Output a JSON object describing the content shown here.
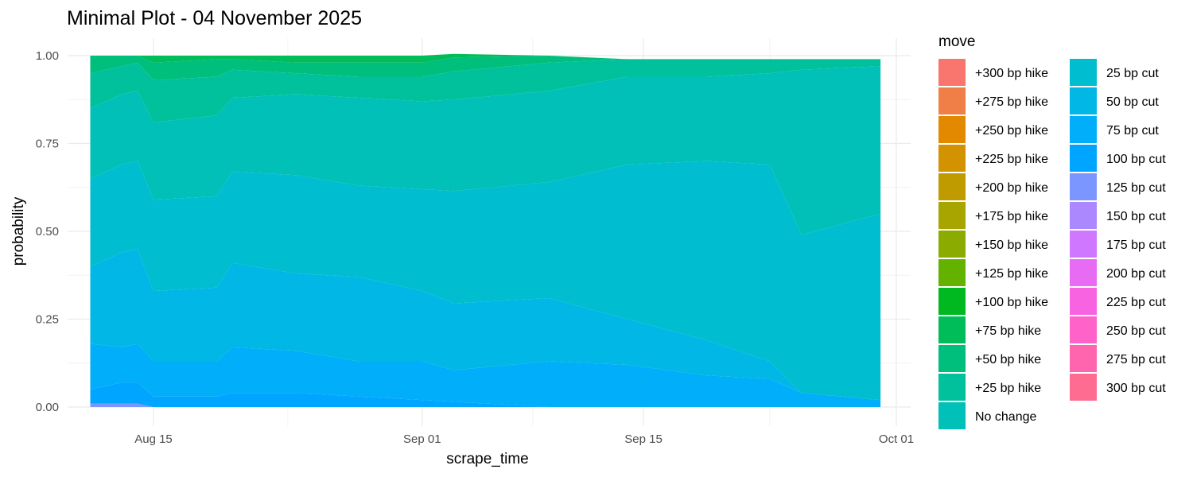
{
  "chart_data": {
    "type": "area",
    "stacked": true,
    "title": "Minimal Plot - 04 November 2025",
    "xlabel": "scrape_time",
    "ylabel": "probability",
    "ylim": [
      0,
      1
    ],
    "xlim": [
      "2025-08-10",
      "2025-10-01"
    ],
    "x_ticks": [
      {
        "date": "2025-08-15",
        "label": "Aug 15"
      },
      {
        "date": "2025-09-01",
        "label": "Sep 01"
      },
      {
        "date": "2025-09-15",
        "label": "Sep 15"
      },
      {
        "date": "2025-10-01",
        "label": "Oct 01"
      }
    ],
    "y_ticks": [
      {
        "value": 0,
        "label": "0.00"
      },
      {
        "value": 0.25,
        "label": "0.25"
      },
      {
        "value": 0.5,
        "label": "0.50"
      },
      {
        "value": 0.75,
        "label": "0.75"
      },
      {
        "value": 1,
        "label": "1.00"
      }
    ],
    "grid": true,
    "legend_title": "move",
    "legend_position": "right",
    "legend": [
      {
        "label": "+300 bp hike",
        "color": "#F8766D"
      },
      {
        "label": "+275 bp hike",
        "color": "#EF7F46"
      },
      {
        "label": "+250 bp hike",
        "color": "#E38900"
      },
      {
        "label": "+225 bp hike",
        "color": "#D39200"
      },
      {
        "label": "+200 bp hike",
        "color": "#C09B00"
      },
      {
        "label": "+175 bp hike",
        "color": "#A8A400"
      },
      {
        "label": "+150 bp hike",
        "color": "#8CAB00"
      },
      {
        "label": "+125 bp hike",
        "color": "#64B200"
      },
      {
        "label": "+100 bp hike",
        "color": "#00B81F"
      },
      {
        "label": "+75 bp hike",
        "color": "#00BC59"
      },
      {
        "label": "+50 bp hike",
        "color": "#00BF7D"
      },
      {
        "label": "+25 bp hike",
        "color": "#00C19C"
      },
      {
        "label": "No change",
        "color": "#00C0B8"
      },
      {
        "label": "25 bp cut",
        "color": "#00BDD0"
      },
      {
        "label": "50 bp cut",
        "color": "#00B7E6"
      },
      {
        "label": "75 bp cut",
        "color": "#00AEF9"
      },
      {
        "label": "100 bp cut",
        "color": "#00A5FF"
      },
      {
        "label": "125 bp cut",
        "color": "#7B97FF"
      },
      {
        "label": "150 bp cut",
        "color": "#AC88FF"
      },
      {
        "label": "175 bp cut",
        "color": "#CF78FF"
      },
      {
        "label": "200 bp cut",
        "color": "#E76BF3"
      },
      {
        "label": "225 bp cut",
        "color": "#F763E0"
      },
      {
        "label": "250 bp cut",
        "color": "#FF62C8"
      },
      {
        "label": "275 bp cut",
        "color": "#FF65AE"
      },
      {
        "label": "300 bp cut",
        "color": "#FF6C91"
      }
    ],
    "x": [
      "2025-08-11",
      "2025-08-13",
      "2025-08-14",
      "2025-08-15",
      "2025-08-19",
      "2025-08-20",
      "2025-08-24",
      "2025-08-28",
      "2025-09-01",
      "2025-09-03",
      "2025-09-09",
      "2025-09-14",
      "2025-09-19",
      "2025-09-23",
      "2025-09-25",
      "2025-09-30"
    ],
    "series": [
      {
        "name": "125 bp cut",
        "color": "#7B97FF",
        "values": [
          0.01,
          0.01,
          0.01,
          0.0,
          0.0,
          0.0,
          0.0,
          0.0,
          0.0,
          0.0,
          0.0,
          0.0,
          0.0,
          0.0,
          0.0,
          0.0
        ]
      },
      {
        "name": "100 bp cut",
        "color": "#00A5FF",
        "values": [
          0.04,
          0.06,
          0.06,
          0.03,
          0.03,
          0.04,
          0.04,
          0.03,
          0.02,
          0.015,
          0.0,
          0.0,
          0.0,
          0.0,
          0.0,
          0.0
        ]
      },
      {
        "name": "75 bp cut",
        "color": "#00AEF9",
        "values": [
          0.13,
          0.1,
          0.11,
          0.1,
          0.1,
          0.13,
          0.12,
          0.1,
          0.11,
          0.09,
          0.13,
          0.12,
          0.09,
          0.08,
          0.04,
          0.02
        ]
      },
      {
        "name": "50 bp cut",
        "color": "#00B7E6",
        "values": [
          0.22,
          0.27,
          0.27,
          0.2,
          0.21,
          0.24,
          0.22,
          0.24,
          0.2,
          0.19,
          0.18,
          0.13,
          0.1,
          0.05,
          0.0,
          0.0
        ]
      },
      {
        "name": "25 bp cut",
        "color": "#00BDD0",
        "values": [
          0.25,
          0.25,
          0.25,
          0.26,
          0.26,
          0.26,
          0.28,
          0.26,
          0.29,
          0.32,
          0.33,
          0.44,
          0.51,
          0.56,
          0.45,
          0.53
        ]
      },
      {
        "name": "No change",
        "color": "#00C0B8",
        "values": [
          0.2,
          0.2,
          0.2,
          0.22,
          0.23,
          0.21,
          0.23,
          0.25,
          0.25,
          0.26,
          0.26,
          0.25,
          0.24,
          0.26,
          0.47,
          0.42
        ]
      },
      {
        "name": "+25 bp hike",
        "color": "#00C19C",
        "values": [
          0.1,
          0.08,
          0.08,
          0.12,
          0.11,
          0.08,
          0.06,
          0.06,
          0.07,
          0.08,
          0.08,
          0.05,
          0.05,
          0.04,
          0.03,
          0.02
        ]
      },
      {
        "name": "+50 bp hike",
        "color": "#00BF7D",
        "values": [
          0.05,
          0.03,
          0.02,
          0.05,
          0.05,
          0.03,
          0.03,
          0.04,
          0.04,
          0.04,
          0.02,
          0.0,
          0.0,
          0.0,
          0.0,
          0.0
        ]
      },
      {
        "name": "+75 bp hike",
        "color": "#00BC59",
        "values": [
          0.0,
          0.0,
          0.0,
          0.02,
          0.01,
          0.01,
          0.02,
          0.02,
          0.02,
          0.01,
          0.0,
          0.0,
          0.0,
          0.0,
          0.0,
          0.0
        ]
      }
    ]
  }
}
